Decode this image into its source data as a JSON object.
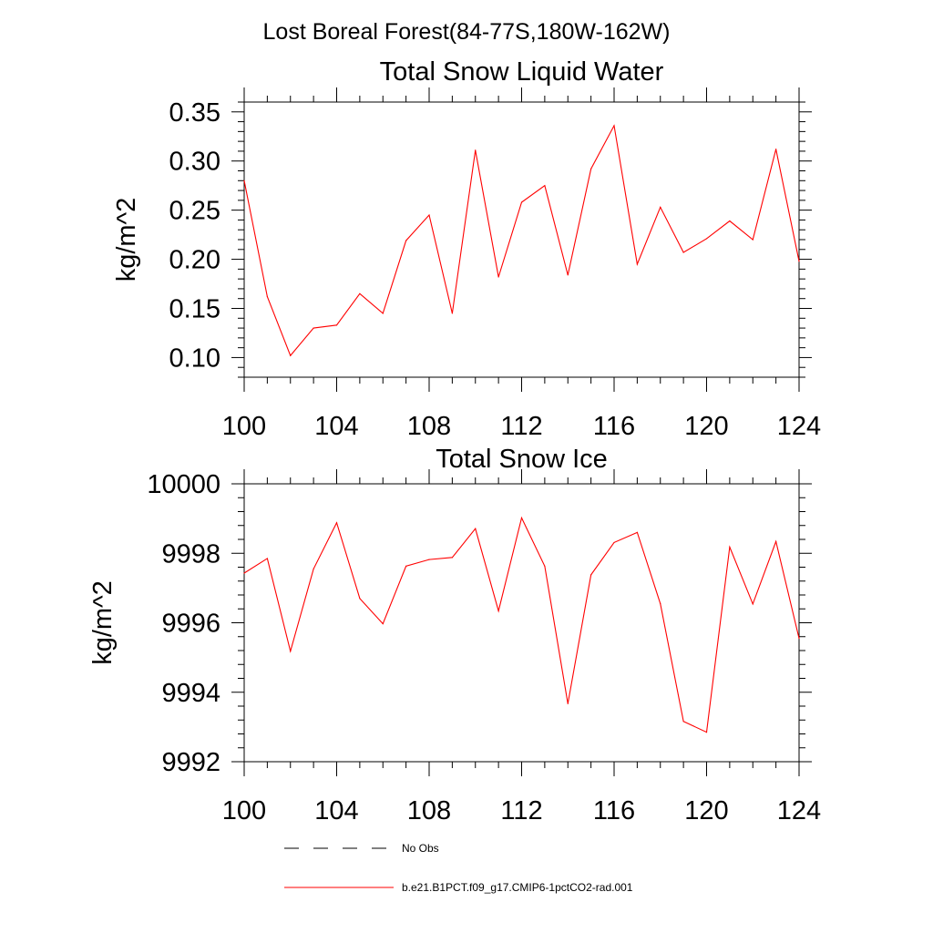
{
  "figure": {
    "title": "Lost Boreal Forest(84-77S,180W-162W)"
  },
  "legend": {
    "items": [
      {
        "label": "No Obs",
        "style": "dashed",
        "color": "#000000"
      },
      {
        "label": "b.e21.B1PCT.f09_g17.CMIP6-1pctCO2-rad.001",
        "style": "solid",
        "color": "#ff0000"
      }
    ]
  },
  "chart_data": [
    {
      "type": "line",
      "title": "Total Snow Liquid Water",
      "xlabel": "",
      "ylabel": "kg/m^2",
      "xlim": [
        100,
        124
      ],
      "ylim": [
        0.08,
        0.36
      ],
      "x_ticks": [
        100,
        104,
        108,
        112,
        116,
        120,
        124
      ],
      "y_ticks": [
        0.1,
        0.15,
        0.2,
        0.25,
        0.3,
        0.35
      ],
      "y_tick_labels": [
        "0.10",
        "0.15",
        "0.20",
        "0.25",
        "0.30",
        "0.35"
      ],
      "grid": false,
      "series": [
        {
          "name": "b.e21.B1PCT.f09_g17.CMIP6-1pctCO2-rad.001",
          "color": "#ff0000",
          "x": [
            100,
            101,
            102,
            103,
            104,
            105,
            106,
            107,
            108,
            109,
            110,
            111,
            112,
            113,
            114,
            115,
            116,
            117,
            118,
            119,
            120,
            121,
            122,
            123,
            124
          ],
          "values": [
            0.28,
            0.162,
            0.102,
            0.13,
            0.133,
            0.165,
            0.145,
            0.219,
            0.245,
            0.145,
            0.311,
            0.182,
            0.258,
            0.275,
            0.184,
            0.292,
            0.336,
            0.195,
            0.253,
            0.207,
            0.221,
            0.239,
            0.22,
            0.312,
            0.198
          ]
        }
      ]
    },
    {
      "type": "line",
      "title": "Total Snow Ice",
      "xlabel": "",
      "ylabel": "kg/m^2",
      "xlim": [
        100,
        124
      ],
      "ylim": [
        9992,
        10000
      ],
      "x_ticks": [
        100,
        104,
        108,
        112,
        116,
        120,
        124
      ],
      "y_ticks": [
        9992,
        9994,
        9996,
        9998,
        10000
      ],
      "y_tick_labels": [
        "9992",
        "9994",
        "9996",
        "9998",
        "10000"
      ],
      "grid": false,
      "series": [
        {
          "name": "b.e21.B1PCT.f09_g17.CMIP6-1pctCO2-rad.001",
          "color": "#ff0000",
          "x": [
            100,
            101,
            102,
            103,
            104,
            105,
            106,
            107,
            108,
            109,
            110,
            111,
            112,
            113,
            114,
            115,
            116,
            117,
            118,
            119,
            120,
            121,
            122,
            123,
            124
          ],
          "values": [
            9997.43,
            9997.85,
            9995.18,
            9997.55,
            9998.88,
            9996.7,
            9995.97,
            9997.63,
            9997.82,
            9997.88,
            9998.71,
            9996.34,
            9999.02,
            9997.63,
            9993.67,
            9997.38,
            9998.31,
            9998.6,
            9996.55,
            9993.16,
            9992.85,
            9998.18,
            9996.54,
            9998.34,
            9995.55
          ]
        }
      ]
    }
  ]
}
